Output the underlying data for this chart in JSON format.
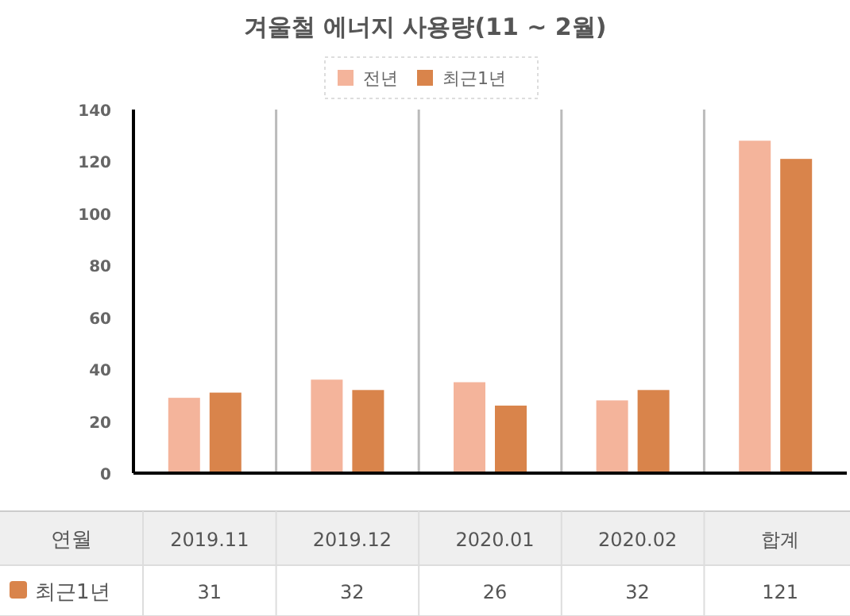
{
  "chart_data": {
    "type": "bar",
    "title": "겨울철 에너지 사용량(11 ~ 2월)",
    "xlabel": "연월",
    "categories": [
      "2019.11",
      "2019.12",
      "2020.01",
      "2020.02",
      "합계"
    ],
    "series": [
      {
        "name": "전년",
        "color": "#f4b49b",
        "values": [
          29,
          36,
          35,
          28,
          128
        ]
      },
      {
        "name": "최근1년",
        "color": "#d9844b",
        "values": [
          31,
          32,
          26,
          32,
          121
        ],
        "value_labels": [
          "31",
          "32",
          "26",
          "32",
          "121"
        ]
      }
    ],
    "ylim": [
      0,
      140
    ],
    "yticks": [
      0,
      20,
      40,
      60,
      80,
      100,
      120,
      140
    ],
    "grid": "x",
    "legend": "top"
  }
}
